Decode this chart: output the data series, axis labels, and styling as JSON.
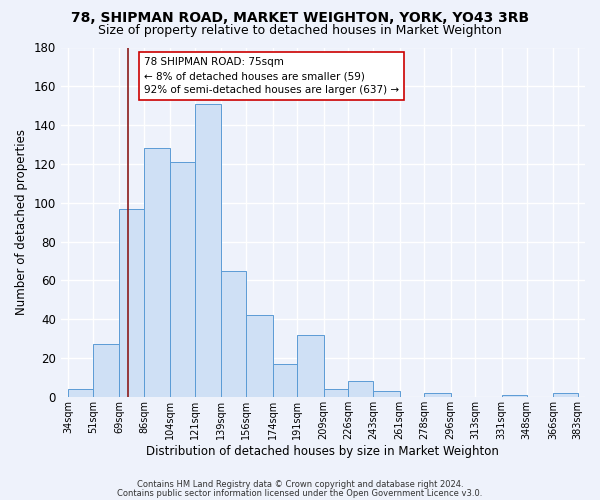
{
  "title1": "78, SHIPMAN ROAD, MARKET WEIGHTON, YORK, YO43 3RB",
  "title2": "Size of property relative to detached houses in Market Weighton",
  "xlabel": "Distribution of detached houses by size in Market Weighton",
  "ylabel": "Number of detached properties",
  "footer1": "Contains HM Land Registry data © Crown copyright and database right 2024.",
  "footer2": "Contains public sector information licensed under the Open Government Licence v3.0.",
  "bin_edges": [
    34,
    51,
    69,
    86,
    104,
    121,
    139,
    156,
    174,
    191,
    209,
    226,
    243,
    261,
    278,
    296,
    313,
    331,
    348,
    366,
    383
  ],
  "bin_labels": [
    "34sqm",
    "51sqm",
    "69sqm",
    "86sqm",
    "104sqm",
    "121sqm",
    "139sqm",
    "156sqm",
    "174sqm",
    "191sqm",
    "209sqm",
    "226sqm",
    "243sqm",
    "261sqm",
    "278sqm",
    "296sqm",
    "313sqm",
    "331sqm",
    "348sqm",
    "366sqm",
    "383sqm"
  ],
  "counts": [
    4,
    27,
    97,
    128,
    121,
    151,
    65,
    42,
    17,
    32,
    4,
    8,
    3,
    0,
    2,
    0,
    0,
    1,
    0,
    2
  ],
  "bar_color": "#cfe0f5",
  "bar_edge_color": "#5b9bd5",
  "vline_x": 75,
  "vline_color": "#8b1a1a",
  "annotation_line1": "78 SHIPMAN ROAD: 75sqm",
  "annotation_line2": "← 8% of detached houses are smaller (59)",
  "annotation_line3": "92% of semi-detached houses are larger (637) →",
  "ylim": [
    0,
    180
  ],
  "yticks": [
    0,
    20,
    40,
    60,
    80,
    100,
    120,
    140,
    160,
    180
  ],
  "bg_color": "#eef2fb",
  "grid_color": "#ffffff",
  "title1_fontsize": 10,
  "title2_fontsize": 9
}
